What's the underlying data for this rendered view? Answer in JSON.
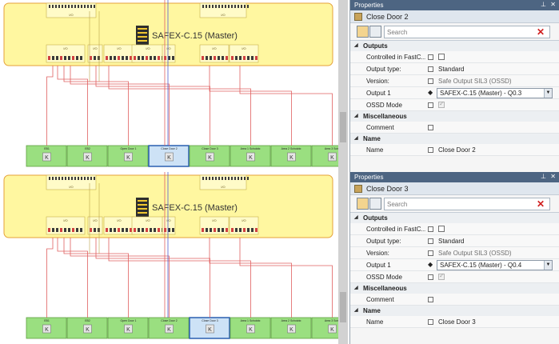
{
  "colors": {
    "module_fill": "#fff7a0",
    "module_border": "#e6a23a",
    "node_fill": "#9adf80",
    "node_selected": "#cde2f6",
    "wire": "#e06060",
    "wire_blue": "#5060d0",
    "title_bar": "#4d6582"
  },
  "top": {
    "diagram": {
      "master_label": "SAFEX-C.15 (Master)",
      "io_groups_top": [
        "I/O",
        "I/O"
      ],
      "io_groups_bottom": [
        "I/O",
        "I/O",
        "I/O",
        "I/O",
        "I/O",
        "I/O"
      ],
      "nodes": [
        "EB1",
        "EB2",
        "Open Door 1",
        "Close Door 2",
        "Close Door 3",
        "Area 1 Schutzkr.",
        "Area 2 Schutzkr.",
        "Area 3 Schu"
      ],
      "selected_index": 3
    },
    "properties": {
      "panel_title": "Properties",
      "object_name": "Close Door 2",
      "search_placeholder": "Search",
      "outputs_label": "Outputs",
      "controlled_label": "Controlled in FastC...",
      "output_type_label": "Output type:",
      "output_type_value": "Standard",
      "version_label": "Version:",
      "version_value": "Safe Output SIL3 (OSSD)",
      "output1_label": "Output 1",
      "output1_value": "SAFEX-C.15 (Master) - Q0.3",
      "ossd_label": "OSSD Mode",
      "misc_label": "Miscellaneous",
      "comment_label": "Comment",
      "name_cat_label": "Name",
      "name_label": "Name",
      "name_value": "Close Door 2"
    }
  },
  "bottom": {
    "diagram": {
      "master_label": "SAFEX-C.15 (Master)",
      "io_groups_top": [
        "I/O",
        "I/O"
      ],
      "io_groups_bottom": [
        "I/O",
        "I/O",
        "I/O",
        "I/O",
        "I/O",
        "I/O"
      ],
      "nodes": [
        "EB1",
        "EB2",
        "Open Door 1",
        "Close Door 2",
        "Close Door 3",
        "Area 1 Schutzkr.",
        "Area 2 Schutzkr.",
        "Area 3 Schu"
      ],
      "selected_index": 4
    },
    "properties": {
      "panel_title": "Properties",
      "object_name": "Close Door 3",
      "search_placeholder": "Search",
      "outputs_label": "Outputs",
      "controlled_label": "Controlled in FastC...",
      "output_type_label": "Output type:",
      "output_type_value": "Standard",
      "version_label": "Version:",
      "version_value": "Safe Output SIL3 (OSSD)",
      "output1_label": "Output 1",
      "output1_value": "SAFEX-C.15 (Master) - Q0.4",
      "ossd_label": "OSSD Mode",
      "misc_label": "Miscellaneous",
      "comment_label": "Comment",
      "name_cat_label": "Name",
      "name_label": "Name",
      "name_value": "Close Door 3"
    }
  }
}
